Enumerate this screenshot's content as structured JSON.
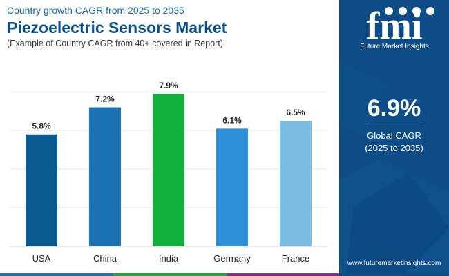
{
  "header": {
    "subtitle": "Country growth CAGR from 2025 to 2035",
    "title": "Piezoelectric Sensors Market",
    "caption": "(Example of Country CAGR from 40+ covered in Report)"
  },
  "chart_data": {
    "type": "bar",
    "title": "Piezoelectric Sensors Market",
    "categories": [
      "USA",
      "China",
      "India",
      "Germany",
      "France"
    ],
    "values": [
      5.8,
      7.2,
      7.9,
      6.1,
      6.5
    ],
    "labels": [
      "5.8%",
      "7.2%",
      "7.9%",
      "6.1%",
      "6.5%"
    ],
    "colors": [
      "#0b5b93",
      "#1a72b4",
      "#12b03a",
      "#2f8fd8",
      "#7cbde6"
    ],
    "ylim": [
      0,
      8.4
    ],
    "grid": true,
    "xlabel": "",
    "ylabel": ""
  },
  "side_panel": {
    "logo_text": "fmi",
    "brand_name": "Future Market Insights",
    "global_value": "6.9%",
    "global_label": "Global CAGR",
    "global_period": "(2025 to 2035)",
    "website": "www.futuremarketinsights.com",
    "bg_color": "#0d4c86"
  },
  "bottom_bar_colors": [
    "#1c74bb",
    "#12b03a",
    "#8b2a8e",
    "#0d4c86"
  ]
}
